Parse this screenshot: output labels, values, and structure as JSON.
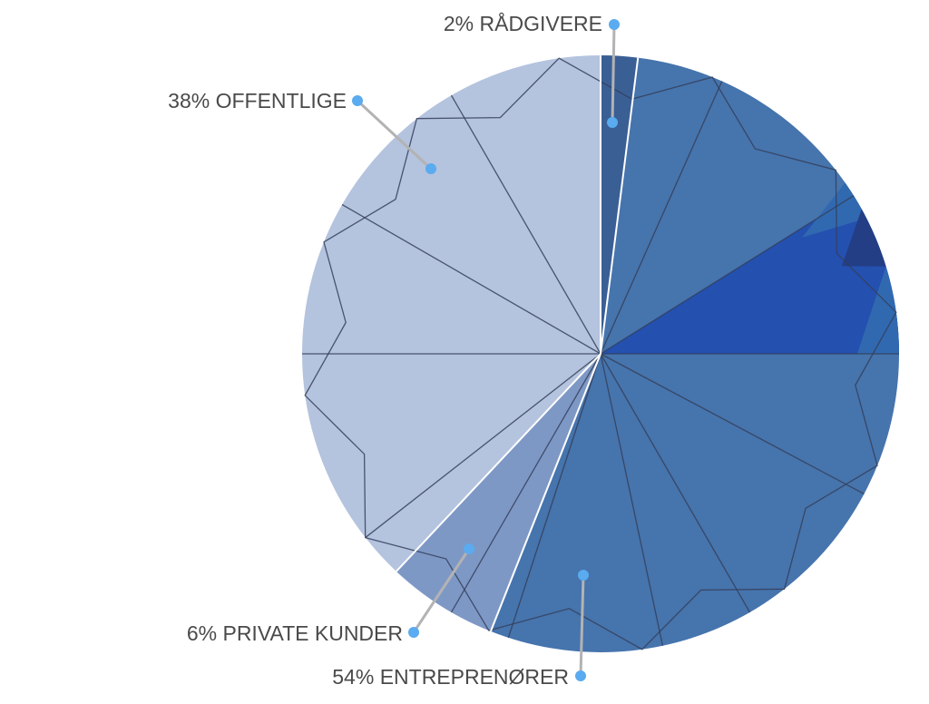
{
  "chart_data": {
    "type": "pie",
    "slices": [
      {
        "label": "RÅDGIVERE",
        "percent_label": "2%",
        "value": 2,
        "color": "#3a5f95"
      },
      {
        "label": "ENTREPRENØRER",
        "percent_label": "54%",
        "value": 54,
        "color": "#4674ad"
      },
      {
        "label": "PRIVATE KUNDER",
        "percent_label": "6%",
        "value": 6,
        "color": "#7e98c6"
      },
      {
        "label": "OFFENTLIGE",
        "percent_label": "38%",
        "value": 38,
        "color": "#b4c3de"
      }
    ],
    "accent_colors": {
      "highlight_wedge": "#2450b0",
      "highlight_wedge_dark": "#233e85",
      "highlight_wedge_mid": "#3169b0",
      "leader_line": "#b3b3b3",
      "leader_dot": "#5aabef",
      "crystal_line": "#34405a"
    },
    "legend": "callout labels with leader lines",
    "start_angle": "12 o'clock, clockwise"
  }
}
